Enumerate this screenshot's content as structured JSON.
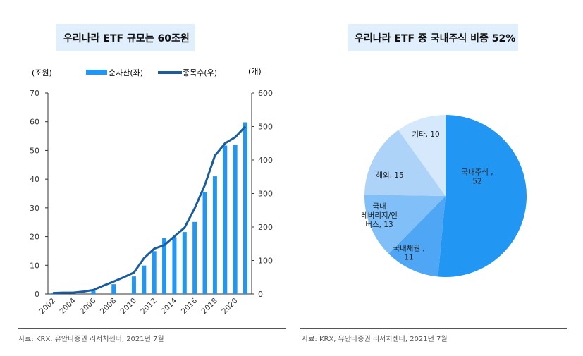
{
  "chart_data": [
    {
      "type": "bar+line",
      "title": "우리나라 ETF 규모는 60조원",
      "ylabel_left": "(조원)",
      "ylabel_right": "(개)",
      "ylim_left": [
        0,
        70
      ],
      "ylim_right": [
        0,
        600
      ],
      "yticks_left": [
        0,
        10,
        20,
        30,
        40,
        50,
        60,
        70
      ],
      "yticks_right": [
        0,
        100,
        200,
        300,
        400,
        500,
        600
      ],
      "xtick_labels": [
        "2002",
        "2004",
        "2006",
        "2008",
        "2010",
        "2012",
        "2014",
        "2016",
        "2018",
        "2020"
      ],
      "legend_position": "top",
      "categories": [
        2002,
        2003,
        2004,
        2005,
        2006,
        2007,
        2008,
        2009,
        2010,
        2011,
        2012,
        2013,
        2014,
        2015,
        2016,
        2017,
        2018,
        2019,
        2020,
        2021
      ],
      "series": [
        {
          "name": "순자산(좌)",
          "kind": "bar",
          "axis": "left",
          "color": "#2196f3",
          "values": [
            0.3,
            null,
            null,
            null,
            1.5,
            null,
            3.4,
            null,
            6.1,
            9.9,
            14.9,
            19.4,
            19.8,
            21.6,
            25.1,
            35.6,
            41.0,
            51.7,
            52.0,
            59.8
          ]
        },
        {
          "name": "종목수(우)",
          "kind": "line",
          "axis": "right",
          "color": "#1b5c9e",
          "values": [
            3,
            4,
            4,
            7,
            12,
            25,
            37,
            50,
            64,
            107,
            135,
            146,
            172,
            198,
            256,
            325,
            413,
            450,
            468,
            500
          ]
        }
      ],
      "source": "자료: KRX, 유안타증권 리서치센터, 2021년 7월"
    },
    {
      "type": "pie",
      "title": "우리나라 ETF 중 국내주식 비중 52%",
      "slices": [
        {
          "label": "국내주식 ,",
          "value": 52,
          "color": "#2196f3"
        },
        {
          "label": "국내채권 ,",
          "value": 11,
          "color": "#4ea6f5"
        },
        {
          "label": "국내 레버리지/인버스",
          "value": 13,
          "color": "#80bff7"
        },
        {
          "label": "해외",
          "value": 15,
          "color": "#aed3f9"
        },
        {
          "label": "기타",
          "value": 10,
          "color": "#d6e9fc"
        }
      ],
      "slice_texts": [
        [
          "국내주식 ,",
          "52"
        ],
        [
          "국내채권 ,",
          "11"
        ],
        [
          "국내",
          "레버리지/인",
          "버스, 13"
        ],
        [
          "해외, 15"
        ],
        [
          "기타, 10"
        ]
      ],
      "source": "자료: KRX, 유안타증권 리서치센터, 2021년 7월"
    }
  ]
}
